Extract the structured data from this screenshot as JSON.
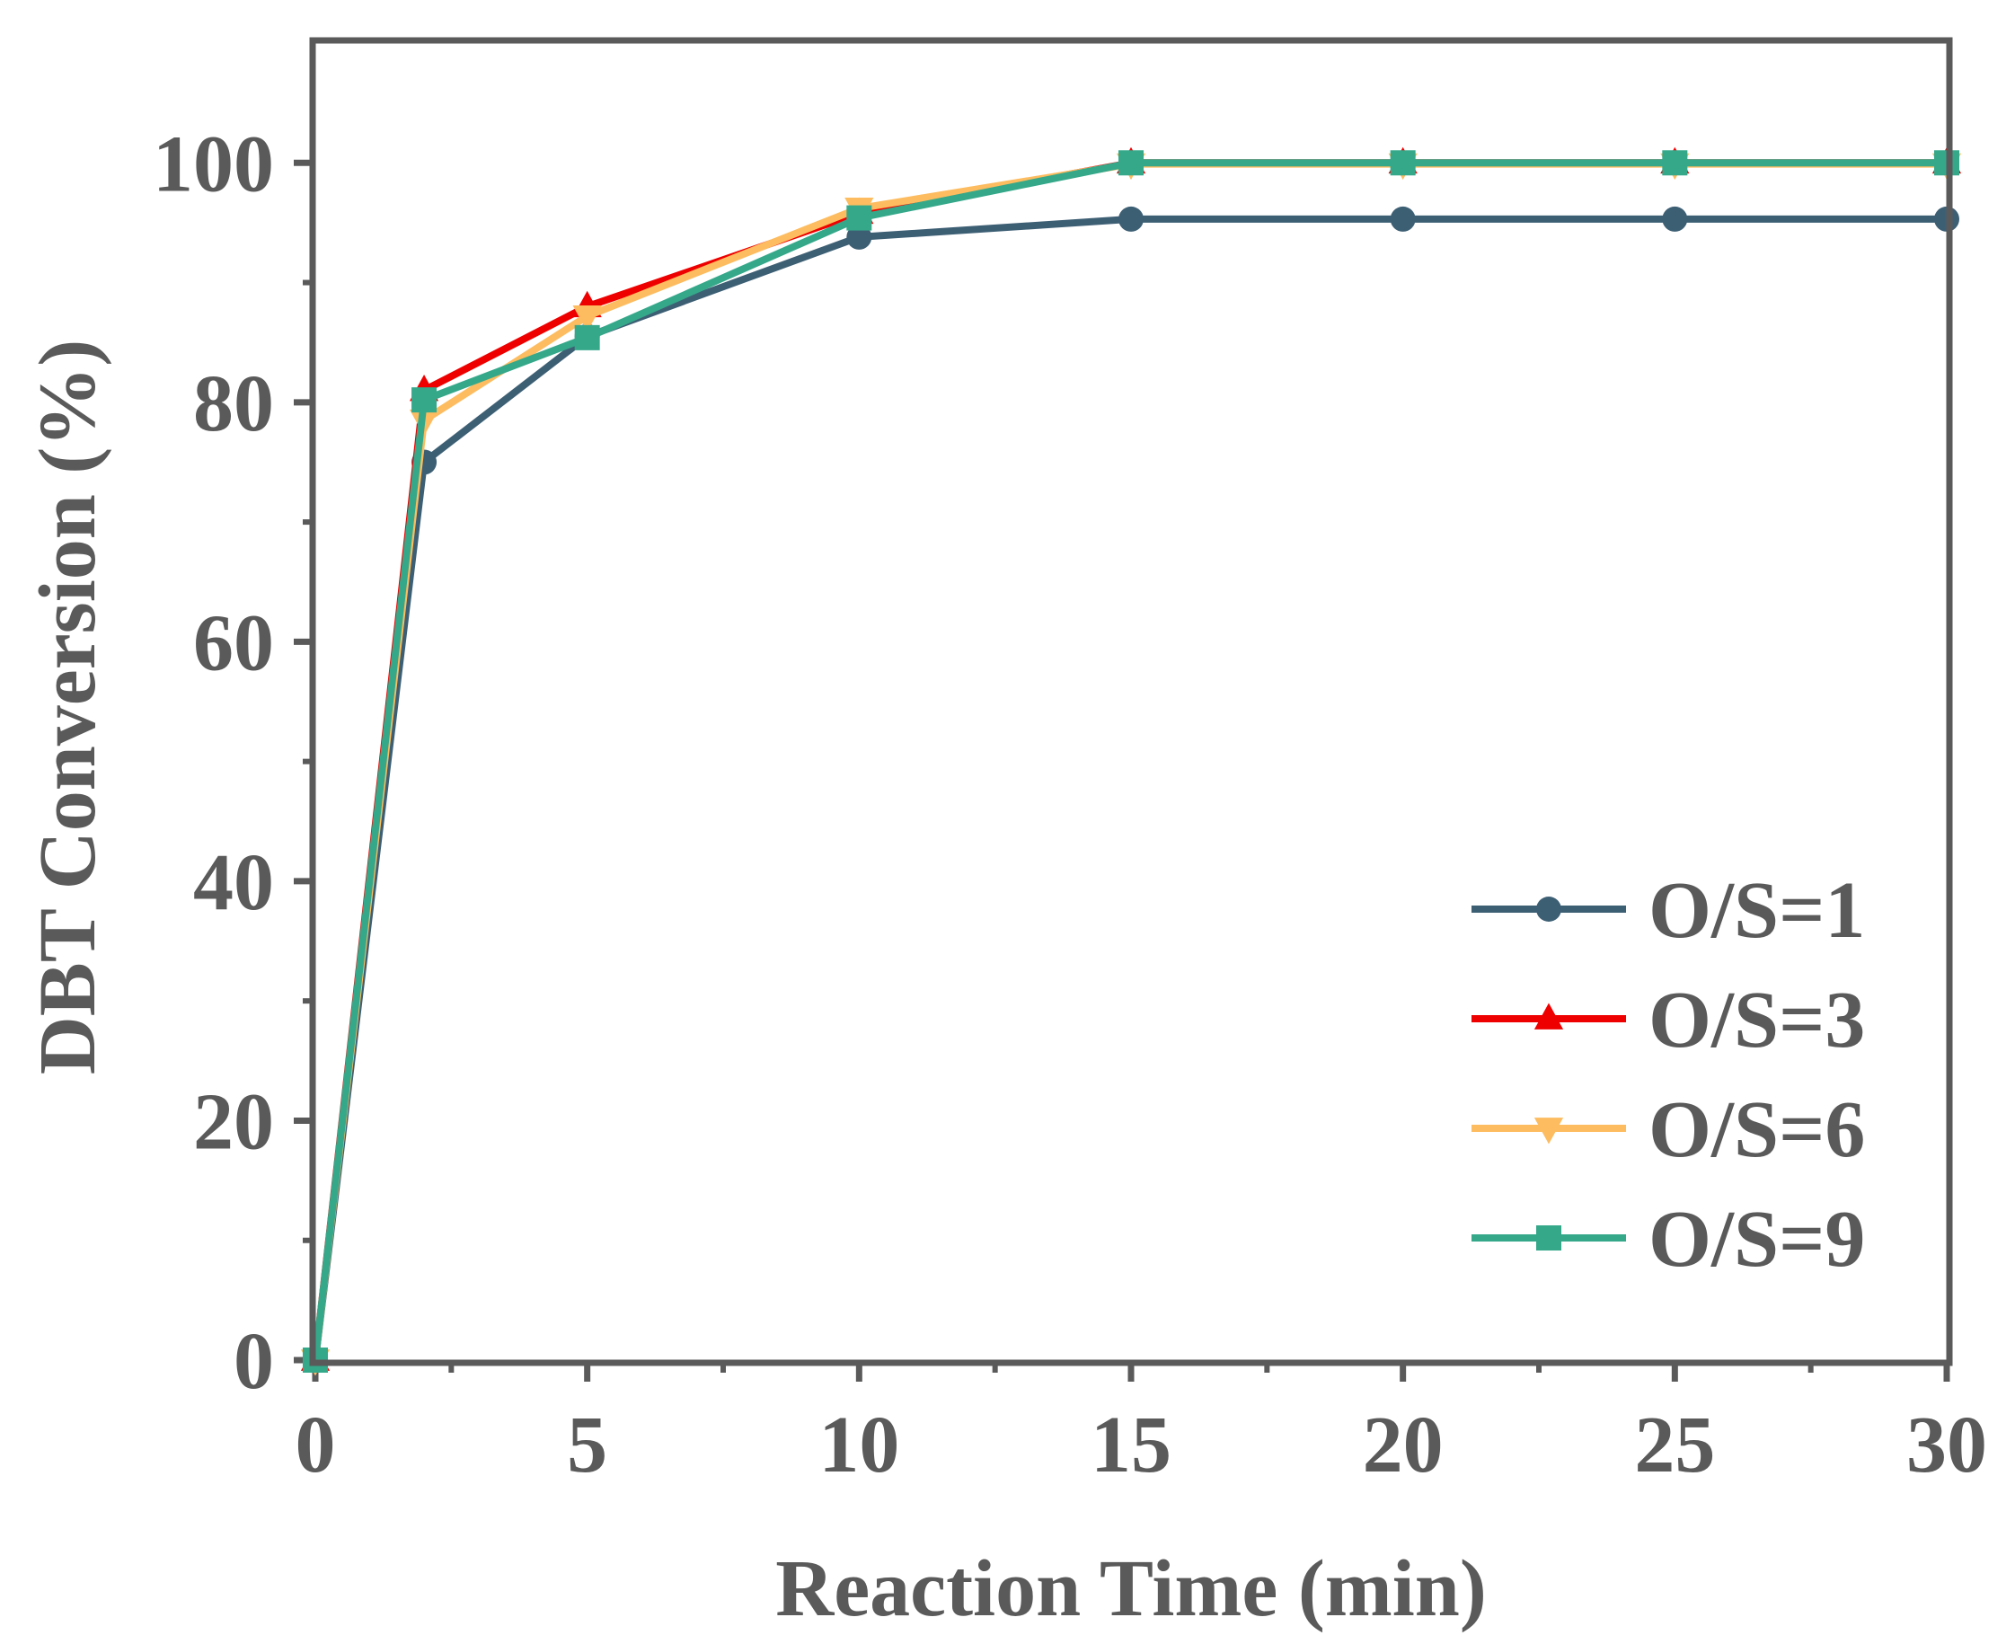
{
  "chart_data": {
    "type": "line",
    "title": "",
    "xlabel": "Reaction Time (min)",
    "ylabel": "DBT Conversion (%)",
    "xlim": [
      0,
      30
    ],
    "ylim": [
      0,
      110
    ],
    "xticks": [
      0,
      5,
      10,
      15,
      20,
      25,
      30
    ],
    "yticks": [
      0,
      20,
      40,
      60,
      80,
      100
    ],
    "xtick_labels": [
      "0",
      "5",
      "10",
      "15",
      "20",
      "25",
      "30"
    ],
    "ytick_labels": [
      "0",
      "20",
      "40",
      "60",
      "80",
      "100"
    ],
    "x": [
      0,
      2,
      5,
      10,
      15,
      20,
      25,
      30
    ],
    "grid": false,
    "legend_position": "bottom-right",
    "series": [
      {
        "name": "O/S=1",
        "color": "#3d5f74",
        "marker": "circle",
        "values": [
          0,
          75.0,
          85.5,
          93.8,
          95.3,
          95.3,
          95.3,
          95.3
        ]
      },
      {
        "name": "O/S=3",
        "color": "#ee0000",
        "marker": "triangle-up",
        "values": [
          0,
          81.0,
          88.0,
          95.8,
          100,
          100,
          100,
          100
        ]
      },
      {
        "name": "O/S=6",
        "color": "#fdbc5f",
        "marker": "triangle-down",
        "values": [
          0,
          78.5,
          87.2,
          96.2,
          99.9,
          99.9,
          99.9,
          99.9
        ]
      },
      {
        "name": "O/S=9",
        "color": "#35a88a",
        "marker": "square",
        "values": [
          0,
          80.2,
          85.4,
          95.4,
          100,
          100,
          100,
          100
        ]
      }
    ]
  }
}
